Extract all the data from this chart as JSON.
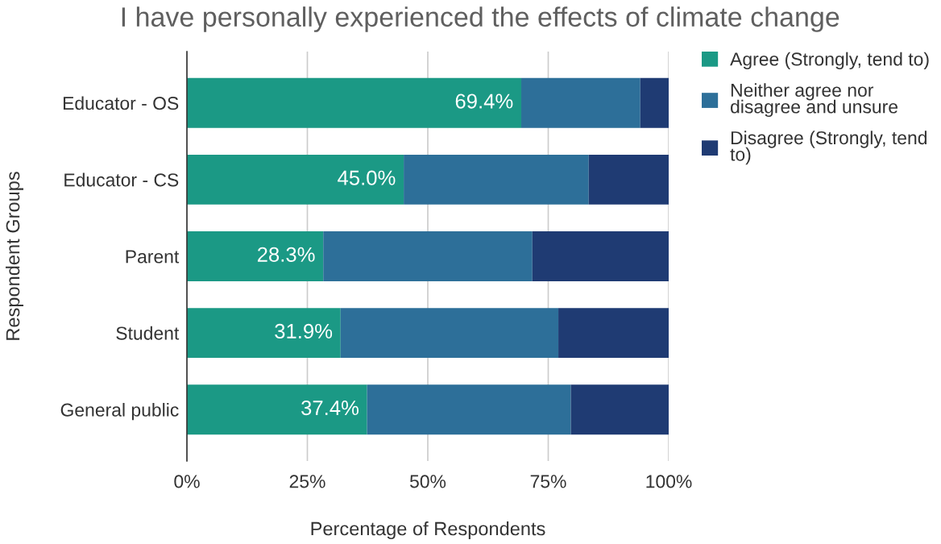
{
  "chart_data": {
    "type": "bar",
    "orientation": "horizontal",
    "stacked": true,
    "title": "I have personally experienced the effects of climate change",
    "xlabel": "Percentage of Respondents",
    "ylabel": "Respondent Groups",
    "categories": [
      "Educator - OS",
      "Educator - CS",
      "Parent",
      "Student",
      "General public"
    ],
    "series": [
      {
        "name": "Agree (Strongly, tend to)",
        "color": "#1b9985",
        "values": [
          69.4,
          45.0,
          28.3,
          31.9,
          37.4
        ],
        "value_labels": [
          "69.4%",
          "45.0%",
          "28.3%",
          "31.9%",
          "37.4%"
        ]
      },
      {
        "name": "Neither agree nor disagree and unsure",
        "color": "#2d6f99",
        "values": [
          24.7,
          38.4,
          43.4,
          45.2,
          42.3
        ]
      },
      {
        "name": "Disagree (Strongly, tend to)",
        "color": "#1f3b73",
        "values": [
          5.9,
          16.6,
          28.3,
          22.9,
          20.3
        ]
      }
    ],
    "xlim": [
      0,
      100
    ],
    "xticks": [
      {
        "value": 0,
        "label": "0%"
      },
      {
        "value": 25,
        "label": "25%"
      },
      {
        "value": 50,
        "label": "50%"
      },
      {
        "value": 75,
        "label": "75%"
      },
      {
        "value": 100,
        "label": "100%"
      }
    ],
    "grid": "x",
    "legend": "right"
  }
}
